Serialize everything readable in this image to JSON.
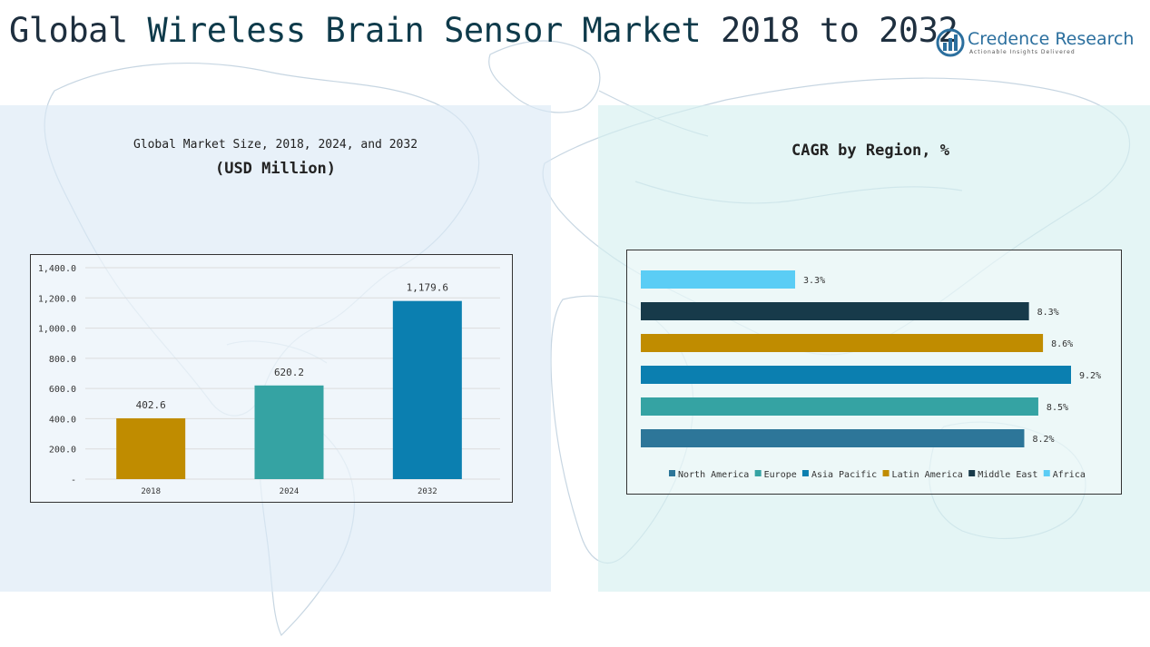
{
  "header": {
    "title_part1": "Global ",
    "title_part2": "Wireless Brain Sensor Market",
    "title_part3": " 2018 to 2032"
  },
  "logo": {
    "name": "Credence Research",
    "tagline": "Actionable Insights Delivered"
  },
  "left_panel": {
    "title": "Global Market Size, 2018, 2024, and 2032",
    "subtitle": "(USD Million)"
  },
  "right_panel": {
    "title": "CAGR by Region, %"
  },
  "chart_data": [
    {
      "type": "bar",
      "title": "Global Market Size, 2018, 2024, and 2032",
      "subtitle": "(USD Million)",
      "categories": [
        "2018",
        "2024",
        "2032"
      ],
      "values": [
        402.6,
        620.2,
        1179.6
      ],
      "value_labels": [
        "402.6",
        "620.2",
        "1,179.6"
      ],
      "colors": [
        "#c08c00",
        "#35a3a3",
        "#0b7fb0"
      ],
      "ylim": [
        0,
        1400
      ],
      "yticks": [
        0,
        200,
        400,
        600,
        800,
        1000,
        1200,
        1400
      ],
      "ytick_labels": [
        "-",
        "200.0",
        "400.0",
        "600.0",
        "800.0",
        "1,000.0",
        "1,200.0",
        "1,400.0"
      ],
      "grid": true
    },
    {
      "type": "bar",
      "orientation": "horizontal",
      "title": "CAGR by Region, %",
      "series": [
        {
          "name": "Africa",
          "value": 3.3,
          "label": "3.3%",
          "color": "#5bcdf5"
        },
        {
          "name": "Middle East",
          "value": 8.3,
          "label": "8.3%",
          "color": "#173a4a"
        },
        {
          "name": "Latin America",
          "value": 8.6,
          "label": "8.6%",
          "color": "#c08c00"
        },
        {
          "name": "Asia Pacific",
          "value": 9.2,
          "label": "9.2%",
          "color": "#0b7fb0"
        },
        {
          "name": "Europe",
          "value": 8.5,
          "label": "8.5%",
          "color": "#35a3a3"
        },
        {
          "name": "North America",
          "value": 8.2,
          "label": "8.2%",
          "color": "#2d7699"
        }
      ],
      "legend_order": [
        "North America",
        "Europe",
        "Asia Pacific",
        "Latin America",
        "Middle East",
        "Africa"
      ],
      "xlim": [
        0,
        9.2
      ],
      "legend_position": "bottom"
    }
  ]
}
